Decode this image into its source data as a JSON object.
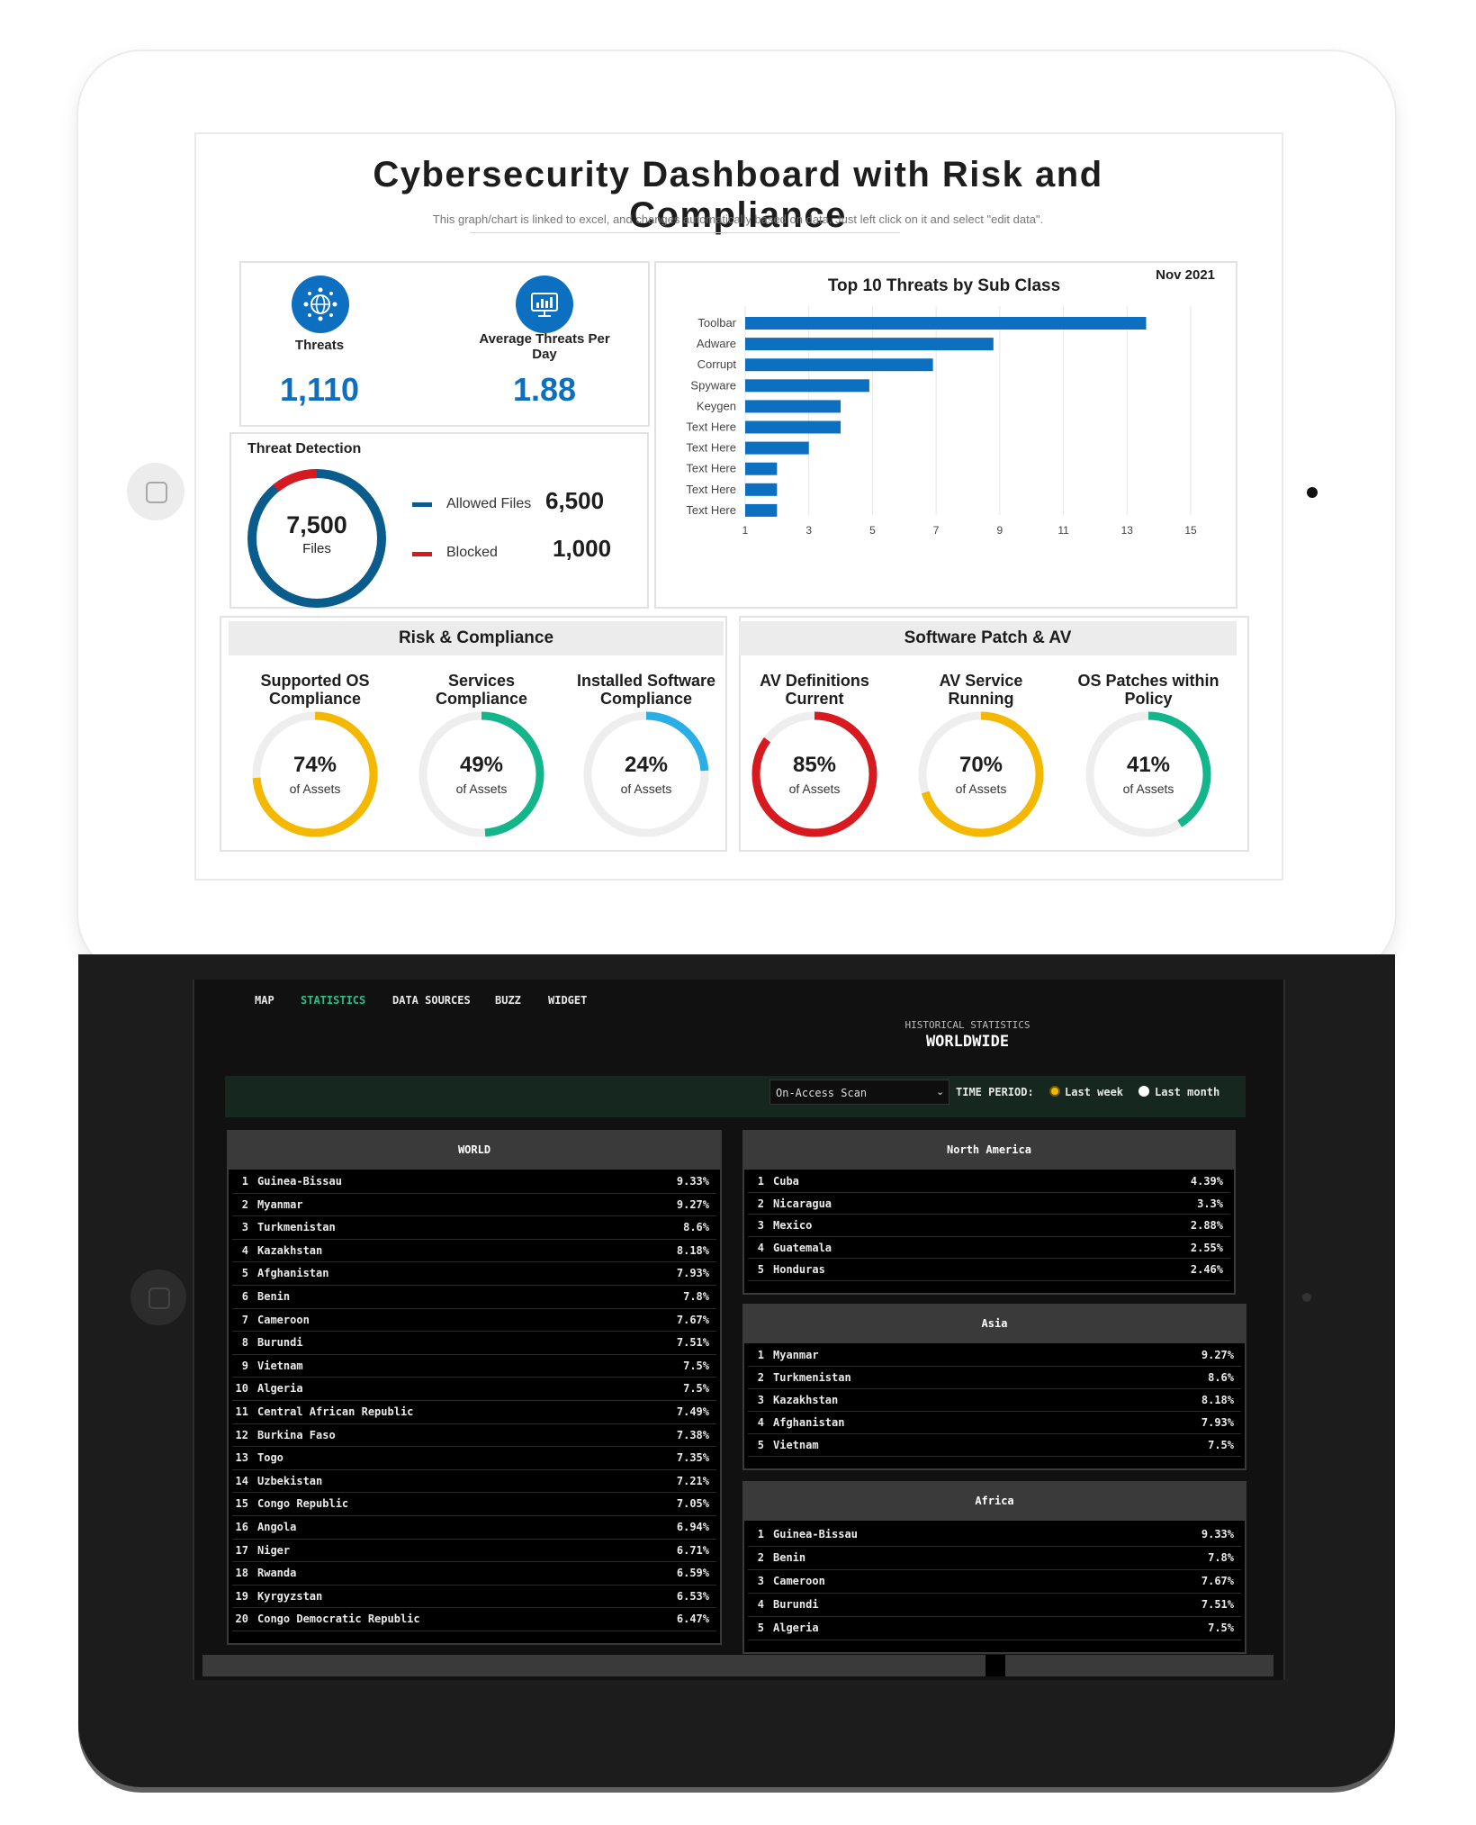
{
  "dashboard": {
    "title": "Cybersecurity Dashboard with Risk and Compliance",
    "subtitle": "This graph/chart is linked to excel,  and changes automatically based on data. Just left click on it and select \"edit data\".",
    "kpis": [
      {
        "label": "Threats",
        "value": "1,110",
        "icon": "network-globe-icon"
      },
      {
        "label": "Average Threats Per Day",
        "value": "1.88",
        "icon": "monitor-chart-icon"
      }
    ],
    "threat_detection": {
      "title": "Threat Detection",
      "center_value": "7,500",
      "center_label": "Files",
      "allowed_label": "Allowed Files",
      "allowed_value": "6,500",
      "blocked_label": "Blocked",
      "blocked_value": "1,000",
      "allowed_color": "#0a5c8c",
      "blocked_color": "#d71920"
    },
    "risk_header": "Risk & Compliance",
    "patch_header": "Software Patch & AV",
    "gauges": [
      {
        "title1": "Supported OS",
        "title2": "Compliance",
        "pct": "74%",
        "value": 74,
        "sub": "of Assets",
        "color": "#f5b800"
      },
      {
        "title1": "Services",
        "title2": "Compliance",
        "pct": "49%",
        "value": 49,
        "sub": "of Assets",
        "color": "#13b58a"
      },
      {
        "title1": "Installed Software",
        "title2": "Compliance",
        "pct": "24%",
        "value": 24,
        "sub": "of Assets",
        "color": "#29aee6"
      },
      {
        "title1": "AV Definitions",
        "title2": "Current",
        "pct": "85%",
        "value": 85,
        "sub": "of Assets",
        "color": "#d71920"
      },
      {
        "title1": "AV Service",
        "title2": "Running",
        "pct": "70%",
        "value": 70,
        "sub": "of Assets",
        "color": "#f5b800"
      },
      {
        "title1": "OS Patches within",
        "title2": "Policy",
        "pct": "41%",
        "value": 41,
        "sub": "of Assets",
        "color": "#13b58a"
      }
    ]
  },
  "chart_data": {
    "type": "bar",
    "orientation": "horizontal",
    "title": "Top 10 Threats by Sub Class",
    "date_label": "Nov 2021",
    "categories": [
      "Toolbar",
      "Adware",
      "Corrupt",
      "Spyware",
      "Keygen",
      "Text Here",
      "Text Here",
      "Text Here",
      "Text Here",
      "Text Here"
    ],
    "values": [
      13.6,
      8.8,
      6.9,
      4.9,
      4.0,
      4.0,
      3.0,
      2.0,
      2.0,
      2.0
    ],
    "xlim": [
      1,
      15
    ],
    "xticks": [
      1,
      3,
      5,
      7,
      9,
      11,
      13,
      15
    ],
    "bar_color": "#0d6fc0",
    "grid": true
  },
  "stats_app": {
    "nav": [
      "MAP",
      "STATISTICS",
      "DATA SOURCES",
      "BUZZ",
      "WIDGET"
    ],
    "active_nav": "STATISTICS",
    "hist_label": "HISTORICAL STATISTICS",
    "hist_title": "WORLDWIDE",
    "scan_select": "On-Access Scan",
    "time_period_label": "TIME PERIOD:",
    "radio_week": "Last week",
    "radio_month": "Last month",
    "accent": "#2bbf8a",
    "world": {
      "header": "WORLD",
      "rows": [
        [
          "1",
          "Guinea-Bissau",
          "9.33%"
        ],
        [
          "2",
          "Myanmar",
          "9.27%"
        ],
        [
          "3",
          "Turkmenistan",
          "8.6%"
        ],
        [
          "4",
          "Kazakhstan",
          "8.18%"
        ],
        [
          "5",
          "Afghanistan",
          "7.93%"
        ],
        [
          "6",
          "Benin",
          "7.8%"
        ],
        [
          "7",
          "Cameroon",
          "7.67%"
        ],
        [
          "8",
          "Burundi",
          "7.51%"
        ],
        [
          "9",
          "Vietnam",
          "7.5%"
        ],
        [
          "10",
          "Algeria",
          "7.5%"
        ],
        [
          "11",
          "Central African Republic",
          "7.49%"
        ],
        [
          "12",
          "Burkina Faso",
          "7.38%"
        ],
        [
          "13",
          "Togo",
          "7.35%"
        ],
        [
          "14",
          "Uzbekistan",
          "7.21%"
        ],
        [
          "15",
          "Congo Republic",
          "7.05%"
        ],
        [
          "16",
          "Angola",
          "6.94%"
        ],
        [
          "17",
          "Niger",
          "6.71%"
        ],
        [
          "18",
          "Rwanda",
          "6.59%"
        ],
        [
          "19",
          "Kyrgyzstan",
          "6.53%"
        ],
        [
          "20",
          "Congo Democratic Republic",
          "6.47%"
        ]
      ]
    },
    "north_america": {
      "header": "North America",
      "rows": [
        [
          "1",
          "Cuba",
          "4.39%"
        ],
        [
          "2",
          "Nicaragua",
          "3.3%"
        ],
        [
          "3",
          "Mexico",
          "2.88%"
        ],
        [
          "4",
          "Guatemala",
          "2.55%"
        ],
        [
          "5",
          "Honduras",
          "2.46%"
        ]
      ]
    },
    "asia": {
      "header": "Asia",
      "rows": [
        [
          "1",
          "Myanmar",
          "9.27%"
        ],
        [
          "2",
          "Turkmenistan",
          "8.6%"
        ],
        [
          "3",
          "Kazakhstan",
          "8.18%"
        ],
        [
          "4",
          "Afghanistan",
          "7.93%"
        ],
        [
          "5",
          "Vietnam",
          "7.5%"
        ]
      ]
    },
    "africa": {
      "header": "Africa",
      "rows": [
        [
          "1",
          "Guinea-Bissau",
          "9.33%"
        ],
        [
          "2",
          "Benin",
          "7.8%"
        ],
        [
          "3",
          "Cameroon",
          "7.67%"
        ],
        [
          "4",
          "Burundi",
          "7.51%"
        ],
        [
          "5",
          "Algeria",
          "7.5%"
        ]
      ]
    }
  }
}
